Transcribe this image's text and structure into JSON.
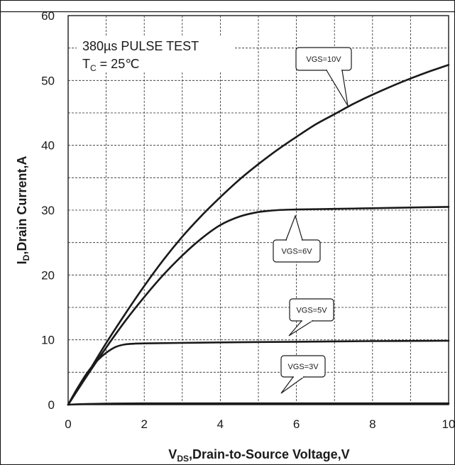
{
  "chart_data": {
    "type": "line",
    "xlabel_main": "V",
    "xlabel_sub": "DS",
    "xlabel_rest": ",Drain-to-Source Voltage,V",
    "ylabel_main": "I",
    "ylabel_sub": "D",
    "ylabel_rest": ",Drain Current,A",
    "xlim": [
      0,
      10
    ],
    "ylim": [
      0,
      60
    ],
    "x_ticks": [
      "0",
      "2",
      "4",
      "6",
      "8",
      "10"
    ],
    "y_ticks": [
      "0",
      "10",
      "20",
      "30",
      "40",
      "50",
      "60"
    ],
    "x_minor_step": 1,
    "y_minor_step": 5,
    "grid": true,
    "annotation_line1": "380µs PULSE TEST",
    "annotation_line2_main": "T",
    "annotation_line2_sub": "C",
    "annotation_line2_rest": " = 25℃",
    "series": [
      {
        "name": "VGS=10V",
        "x": [
          0,
          0.5,
          1,
          1.5,
          2,
          2.5,
          3,
          3.5,
          4,
          4.5,
          5,
          5.5,
          6,
          6.5,
          7,
          7.5,
          8,
          8.5,
          9,
          9.5,
          10
        ],
        "y": [
          0,
          4.7,
          9.5,
          14.0,
          18.3,
          22.3,
          25.9,
          29.1,
          32.0,
          34.7,
          37.1,
          39.3,
          41.3,
          43.2,
          44.8,
          46.4,
          47.8,
          49.1,
          50.3,
          51.4,
          52.4
        ]
      },
      {
        "name": "VGS=6V",
        "x": [
          0,
          0.5,
          1,
          1.5,
          2,
          2.5,
          3,
          3.5,
          4,
          4.5,
          5,
          5.5,
          6,
          7,
          8,
          9,
          10
        ],
        "y": [
          0,
          4.5,
          8.8,
          12.9,
          16.6,
          20.0,
          23.0,
          25.6,
          27.7,
          29.0,
          29.7,
          30.0,
          30.1,
          30.2,
          30.3,
          30.4,
          30.5
        ]
      },
      {
        "name": "VGS=5V",
        "x": [
          0,
          0.25,
          0.5,
          0.75,
          1,
          1.25,
          1.5,
          1.75,
          2,
          4,
          6,
          8,
          10
        ],
        "y": [
          0,
          2.6,
          4.9,
          6.7,
          8.0,
          8.9,
          9.3,
          9.4,
          9.45,
          9.6,
          9.7,
          9.8,
          9.85
        ]
      },
      {
        "name": "VGS=3V",
        "x": [
          0,
          0.5,
          1,
          2,
          4,
          6,
          8,
          10
        ],
        "y": [
          0,
          0.1,
          0.15,
          0.2,
          0.2,
          0.2,
          0.2,
          0.2
        ]
      }
    ],
    "callouts": [
      {
        "label": "VGS=10V",
        "series": "VGS=10V"
      },
      {
        "label": "VGS=6V",
        "series": "VGS=6V"
      },
      {
        "label": "VGS=5V",
        "series": "VGS=5V"
      },
      {
        "label": "VGS=3V",
        "series": "VGS=3V"
      }
    ]
  }
}
